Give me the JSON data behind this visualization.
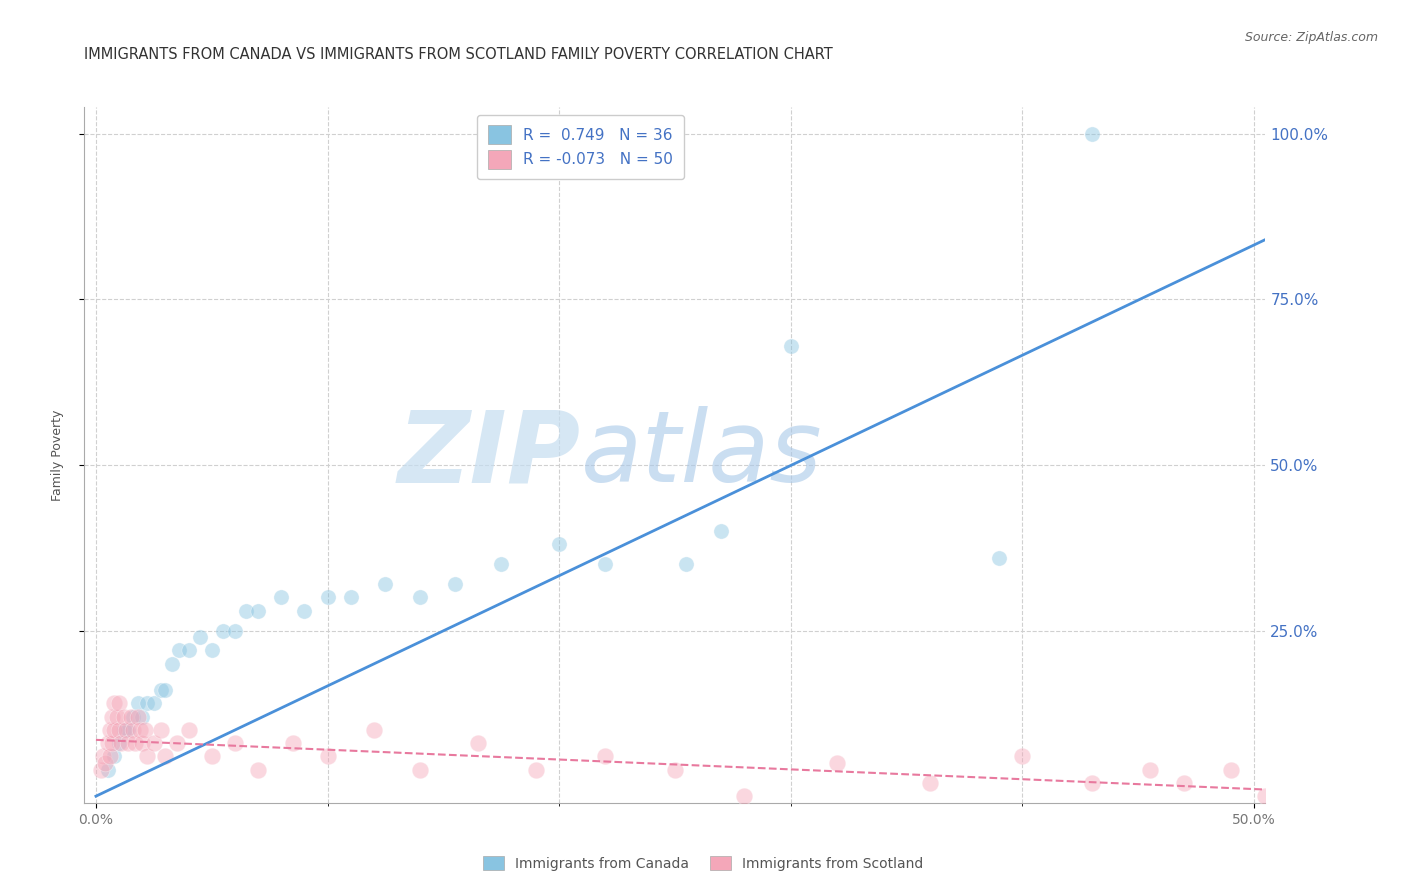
{
  "title": "IMMIGRANTS FROM CANADA VS IMMIGRANTS FROM SCOTLAND FAMILY POVERTY CORRELATION CHART",
  "source": "Source: ZipAtlas.com",
  "ylabel": "Family Poverty",
  "xlabel_canada": "Immigrants from Canada",
  "xlabel_scotland": "Immigrants from Scotland",
  "legend_canada": "R =  0.749   N = 36",
  "legend_scotland": "R = -0.073   N = 50",
  "xlim": [
    -0.005,
    0.505
  ],
  "ylim": [
    -0.01,
    1.04
  ],
  "xticks": [
    0.0,
    0.1,
    0.2,
    0.3,
    0.4,
    0.5
  ],
  "xticklabels_left": "0.0%",
  "xticklabels_right": "50.0%",
  "ytick_positions": [
    0.25,
    0.5,
    0.75,
    1.0
  ],
  "yticklabels": [
    "25.0%",
    "50.0%",
    "75.0%",
    "100.0%"
  ],
  "canada_color": "#89c4e1",
  "scotland_color": "#f4a7b9",
  "canada_line_color": "#4a90d9",
  "scotland_line_color": "#e8799e",
  "watermark_zip": "ZIP",
  "watermark_atlas": "atlas",
  "canada_x": [
    0.005,
    0.008,
    0.01,
    0.012,
    0.014,
    0.016,
    0.018,
    0.02,
    0.022,
    0.025,
    0.028,
    0.03,
    0.033,
    0.036,
    0.04,
    0.045,
    0.05,
    0.055,
    0.06,
    0.065,
    0.07,
    0.08,
    0.09,
    0.1,
    0.11,
    0.125,
    0.14,
    0.155,
    0.175,
    0.2,
    0.22,
    0.255,
    0.27,
    0.3,
    0.39,
    0.43
  ],
  "canada_y": [
    0.04,
    0.06,
    0.08,
    0.1,
    0.1,
    0.12,
    0.14,
    0.12,
    0.14,
    0.14,
    0.16,
    0.16,
    0.2,
    0.22,
    0.22,
    0.24,
    0.22,
    0.25,
    0.25,
    0.28,
    0.28,
    0.3,
    0.28,
    0.3,
    0.3,
    0.32,
    0.3,
    0.32,
    0.35,
    0.38,
    0.35,
    0.35,
    0.4,
    0.68,
    0.36,
    1.0
  ],
  "scotland_x": [
    0.002,
    0.003,
    0.004,
    0.005,
    0.006,
    0.006,
    0.007,
    0.007,
    0.008,
    0.008,
    0.009,
    0.01,
    0.01,
    0.011,
    0.012,
    0.013,
    0.014,
    0.015,
    0.016,
    0.017,
    0.018,
    0.019,
    0.02,
    0.021,
    0.022,
    0.025,
    0.028,
    0.03,
    0.035,
    0.04,
    0.05,
    0.06,
    0.07,
    0.085,
    0.1,
    0.12,
    0.14,
    0.165,
    0.19,
    0.22,
    0.25,
    0.28,
    0.32,
    0.36,
    0.4,
    0.43,
    0.455,
    0.47,
    0.49,
    0.505
  ],
  "scotland_y": [
    0.04,
    0.06,
    0.05,
    0.08,
    0.06,
    0.1,
    0.08,
    0.12,
    0.1,
    0.14,
    0.12,
    0.1,
    0.14,
    0.08,
    0.12,
    0.1,
    0.08,
    0.12,
    0.1,
    0.08,
    0.12,
    0.1,
    0.08,
    0.1,
    0.06,
    0.08,
    0.1,
    0.06,
    0.08,
    0.1,
    0.06,
    0.08,
    0.04,
    0.08,
    0.06,
    0.1,
    0.04,
    0.08,
    0.04,
    0.06,
    0.04,
    0.0,
    0.05,
    0.02,
    0.06,
    0.02,
    0.04,
    0.02,
    0.04,
    0.0
  ],
  "background_color": "#ffffff",
  "grid_color": "#d0d0d0",
  "title_fontsize": 10.5,
  "axis_label_fontsize": 9,
  "tick_fontsize": 10,
  "legend_fontsize": 11,
  "marker_size": 120,
  "marker_alpha": 0.45,
  "canada_trend_x": [
    0.0,
    0.505
  ],
  "canada_trend_y": [
    0.0,
    0.84
  ],
  "scotland_trend_x": [
    0.0,
    0.505
  ],
  "scotland_trend_y": [
    0.085,
    0.01
  ]
}
